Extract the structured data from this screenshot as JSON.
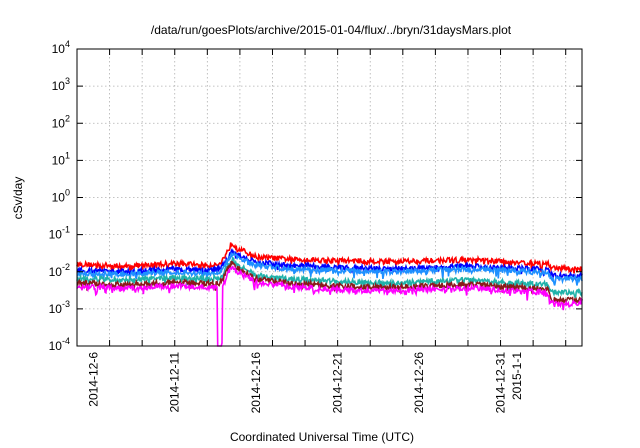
{
  "chart_data": {
    "type": "line",
    "title": "/data/run/goesPlots/archive/2015-01-04/flux/../bryn/31daysMars.plot",
    "xlabel": "Coordinated Universal Time (UTC)",
    "ylabel": "cSv/day",
    "y_scale": "log",
    "ylim": [
      0.0001,
      10000
    ],
    "y_ticks": [
      {
        "value": 0.0001,
        "base": "10",
        "exp": "-4"
      },
      {
        "value": 0.001,
        "base": "10",
        "exp": "-3"
      },
      {
        "value": 0.01,
        "base": "10",
        "exp": "-2"
      },
      {
        "value": 0.1,
        "base": "10",
        "exp": "-1"
      },
      {
        "value": 1,
        "base": "10",
        "exp": "0"
      },
      {
        "value": 10,
        "base": "10",
        "exp": "1"
      },
      {
        "value": 100,
        "base": "10",
        "exp": "2"
      },
      {
        "value": 1000,
        "base": "10",
        "exp": "3"
      },
      {
        "value": 10000,
        "base": "10",
        "exp": "4"
      }
    ],
    "xlim": [
      "2014-12-05",
      "2015-01-05"
    ],
    "x_tick_labels": [
      {
        "date": "2014-12-06",
        "label": "2014-12-6"
      },
      {
        "date": "2014-12-11",
        "label": "2014-12-11"
      },
      {
        "date": "2014-12-16",
        "label": "2014-12-16"
      },
      {
        "date": "2014-12-21",
        "label": "2014-12-21"
      },
      {
        "date": "2014-12-26",
        "label": "2014-12-26"
      },
      {
        "date": "2014-12-31",
        "label": "2014-12-31"
      },
      {
        "date": "2015-01-01",
        "label": "2015-1-1"
      }
    ],
    "grid": true,
    "grid_style": "dotted",
    "series": [
      {
        "color": "#ff0000",
        "x": [
          "2014-12-05",
          "2014-12-08",
          "2014-12-11",
          "2014-12-13",
          "2014-12-13.8",
          "2014-12-14.5",
          "2014-12-15",
          "2014-12-16",
          "2014-12-18",
          "2014-12-21",
          "2014-12-24",
          "2014-12-27",
          "2014-12-29",
          "2014-12-31",
          "2015-01-02",
          "2015-01-02.9",
          "2015-01-03.1",
          "2015-01-04",
          "2015-01-05"
        ],
        "values": [
          0.016,
          0.014,
          0.017,
          0.015,
          0.016,
          0.06,
          0.04,
          0.025,
          0.022,
          0.02,
          0.019,
          0.02,
          0.021,
          0.019,
          0.017,
          0.017,
          0.013,
          0.012,
          0.012
        ]
      },
      {
        "color": "#0000ff",
        "x": [
          "2014-12-05",
          "2014-12-08",
          "2014-12-11",
          "2014-12-13",
          "2014-12-13.8",
          "2014-12-14.5",
          "2014-12-15",
          "2014-12-16",
          "2014-12-18",
          "2014-12-21",
          "2014-12-24",
          "2014-12-27",
          "2014-12-29",
          "2014-12-31",
          "2015-01-02",
          "2015-01-02.9",
          "2015-01-03.1",
          "2015-01-04",
          "2015-01-05"
        ],
        "values": [
          0.011,
          0.01,
          0.012,
          0.011,
          0.012,
          0.035,
          0.026,
          0.018,
          0.015,
          0.013,
          0.012,
          0.013,
          0.014,
          0.013,
          0.012,
          0.011,
          0.0082,
          0.0078,
          0.0078
        ]
      },
      {
        "color": "#1e90ff",
        "x": [
          "2014-12-05",
          "2014-12-08",
          "2014-12-11",
          "2014-12-13",
          "2014-12-13.8",
          "2014-12-14.5",
          "2014-12-15",
          "2014-12-16",
          "2014-12-18",
          "2014-12-21",
          "2014-12-24",
          "2014-12-27",
          "2014-12-29",
          "2014-12-31",
          "2015-01-02",
          "2015-01-02.9",
          "2015-01-03.1",
          "2015-01-04",
          "2015-01-05"
        ],
        "values": [
          0.009,
          0.0085,
          0.01,
          0.009,
          0.01,
          0.03,
          0.022,
          0.015,
          0.012,
          0.011,
          0.01,
          0.011,
          0.012,
          0.011,
          0.01,
          0.0095,
          0.0068,
          0.0065,
          0.0065
        ]
      },
      {
        "color": "#20b2aa",
        "x": [
          "2014-12-05",
          "2014-12-08",
          "2014-12-11",
          "2014-12-13",
          "2014-12-13.8",
          "2014-12-14.5",
          "2014-12-15",
          "2014-12-16",
          "2014-12-18",
          "2014-12-21",
          "2014-12-24",
          "2014-12-27",
          "2014-12-29",
          "2014-12-31",
          "2015-01-02",
          "2015-01-02.9",
          "2015-01-03.1",
          "2015-01-04",
          "2015-01-05"
        ],
        "values": [
          0.0065,
          0.006,
          0.007,
          0.0065,
          0.007,
          0.022,
          0.014,
          0.008,
          0.0065,
          0.0055,
          0.005,
          0.0055,
          0.006,
          0.0052,
          0.0048,
          0.0045,
          0.0028,
          0.0027,
          0.0028
        ]
      },
      {
        "color": "#8b1a1a",
        "x": [
          "2014-12-05",
          "2014-12-08",
          "2014-12-11",
          "2014-12-13",
          "2014-12-13.8",
          "2014-12-14.5",
          "2014-12-15",
          "2014-12-16",
          "2014-12-18",
          "2014-12-21",
          "2014-12-24",
          "2014-12-27",
          "2014-12-29",
          "2014-12-31",
          "2015-01-02",
          "2015-01-02.9",
          "2015-01-03.1",
          "2015-01-04",
          "2015-01-05"
        ],
        "values": [
          0.005,
          0.0045,
          0.0052,
          0.0048,
          0.005,
          0.018,
          0.011,
          0.0065,
          0.005,
          0.0042,
          0.0038,
          0.0042,
          0.0046,
          0.004,
          0.0036,
          0.0034,
          0.0018,
          0.0017,
          0.0018
        ]
      },
      {
        "color": "#ff00ff",
        "x": [
          "2014-12-05",
          "2014-12-08",
          "2014-12-11",
          "2014-12-13",
          "2014-12-13.6",
          "2014-12-13.62",
          "2014-12-13.9",
          "2014-12-13.92",
          "2014-12-14.5",
          "2014-12-15",
          "2014-12-16",
          "2014-12-18",
          "2014-12-21",
          "2014-12-24",
          "2014-12-27",
          "2014-12-29",
          "2014-12-31",
          "2015-01-02",
          "2015-01-02.9",
          "2015-01-03.1",
          "2015-01-04",
          "2015-01-05"
        ],
        "values": [
          0.004,
          0.0035,
          0.0042,
          0.0038,
          0.004,
          0.0001,
          0.0001,
          0.004,
          0.014,
          0.009,
          0.0052,
          0.004,
          0.0033,
          0.003,
          0.0034,
          0.0037,
          0.0032,
          0.0029,
          0.0027,
          0.0014,
          0.0013,
          0.0015
        ]
      }
    ]
  }
}
